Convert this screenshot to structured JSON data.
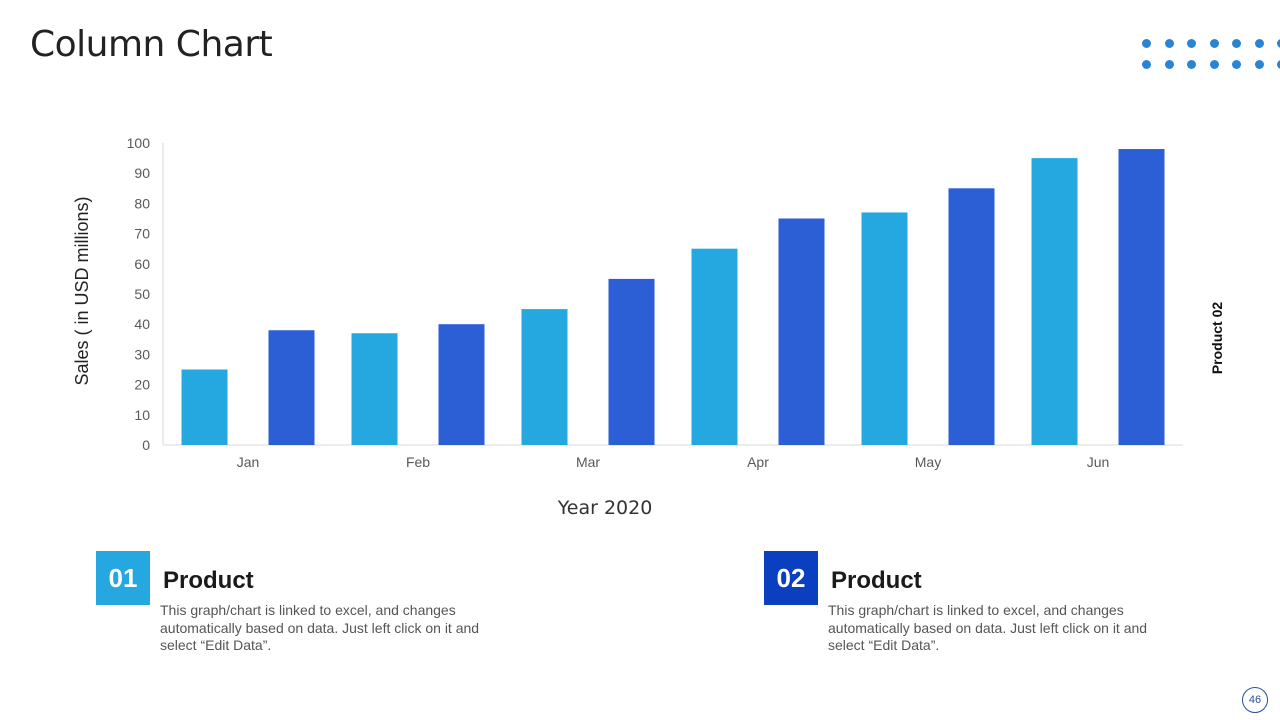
{
  "slide": {
    "title": "Column Chart",
    "page_number": "46"
  },
  "colors": {
    "product01": "#25a7e0",
    "product02": "#2c5fd5",
    "axis": "#d9d9d9",
    "tick": "#595959",
    "dots": "#2a84d4"
  },
  "chart_data": {
    "type": "bar",
    "title": "",
    "xlabel": "Year 2020",
    "ylabel": "Sales ( in USD millions)",
    "ylim": [
      0,
      100
    ],
    "yticks": [
      0,
      10,
      20,
      30,
      40,
      50,
      60,
      70,
      80,
      90,
      100
    ],
    "categories": [
      "Jan",
      "Feb",
      "Mar",
      "Apr",
      "May",
      "Jun"
    ],
    "series": [
      {
        "name": "Product 01",
        "values": [
          25,
          37,
          45,
          65,
          77,
          95
        ],
        "color": "#25a7e0"
      },
      {
        "name": "Product 02",
        "values": [
          38,
          40,
          55,
          75,
          85,
          98
        ],
        "color": "#2c5fd5"
      }
    ],
    "legend_label": "Product 02",
    "legend_position": "right",
    "grid": false
  },
  "cards": [
    {
      "number": "01",
      "heading": "Product",
      "description": "This graph/chart is linked to excel, and changes automatically based on data. Just left click on it and select “Edit Data”.",
      "color": "#25a7e0"
    },
    {
      "number": "02",
      "heading": "Product",
      "description": "This graph/chart is linked to excel, and changes automatically based on data. Just left click on it and select “Edit Data”.",
      "color": "#0a3fc0"
    }
  ]
}
